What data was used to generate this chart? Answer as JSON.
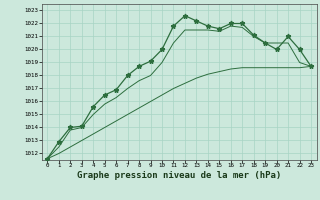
{
  "bg_color": "#cce8dc",
  "grid_color": "#a8d4c4",
  "line_color": "#2d6e3e",
  "xlabel": "Graphe pression niveau de la mer (hPa)",
  "ylim": [
    1011.5,
    1023.5
  ],
  "xlim": [
    -0.5,
    23.5
  ],
  "yticks": [
    1012,
    1013,
    1014,
    1015,
    1016,
    1017,
    1018,
    1019,
    1020,
    1021,
    1022,
    1023
  ],
  "xticks": [
    0,
    1,
    2,
    3,
    4,
    5,
    6,
    7,
    8,
    9,
    10,
    11,
    12,
    13,
    14,
    15,
    16,
    17,
    18,
    19,
    20,
    21,
    22,
    23
  ],
  "s1_x": [
    0,
    1,
    2,
    3,
    4,
    5,
    6,
    7,
    8,
    9,
    10,
    11,
    12,
    13,
    14,
    15,
    16,
    17,
    18,
    19,
    20,
    21,
    22,
    23
  ],
  "s1_y": [
    1011.6,
    1012.9,
    1014.0,
    1014.1,
    1015.6,
    1016.5,
    1016.9,
    1018.0,
    1018.7,
    1019.1,
    1020.0,
    1021.8,
    1022.6,
    1022.2,
    1021.8,
    1021.6,
    1022.0,
    1022.0,
    1021.1,
    1020.5,
    1020.0,
    1021.0,
    1020.0,
    1018.7
  ],
  "s2_x": [
    0,
    1,
    2,
    3,
    4,
    5,
    6,
    7,
    8,
    9,
    10,
    11,
    12,
    13,
    14,
    15,
    16,
    17,
    18,
    19,
    20,
    21,
    22,
    23
  ],
  "s2_y": [
    1011.6,
    1012.5,
    1013.8,
    1014.0,
    1015.0,
    1015.8,
    1016.3,
    1017.0,
    1017.6,
    1018.0,
    1019.0,
    1020.5,
    1021.5,
    1021.5,
    1021.5,
    1021.4,
    1021.8,
    1021.7,
    1021.0,
    1020.5,
    1020.5,
    1020.5,
    1019.0,
    1018.7
  ],
  "s3_x": [
    0,
    1,
    2,
    3,
    4,
    5,
    6,
    7,
    8,
    9,
    10,
    11,
    12,
    13,
    14,
    15,
    16,
    17,
    18,
    19,
    20,
    21,
    22,
    23
  ],
  "s3_y": [
    1011.6,
    1012.0,
    1012.5,
    1013.0,
    1013.5,
    1014.0,
    1014.5,
    1015.0,
    1015.5,
    1016.0,
    1016.5,
    1017.0,
    1017.4,
    1017.8,
    1018.1,
    1018.3,
    1018.5,
    1018.6,
    1018.6,
    1018.6,
    1018.6,
    1018.6,
    1018.6,
    1018.7
  ]
}
